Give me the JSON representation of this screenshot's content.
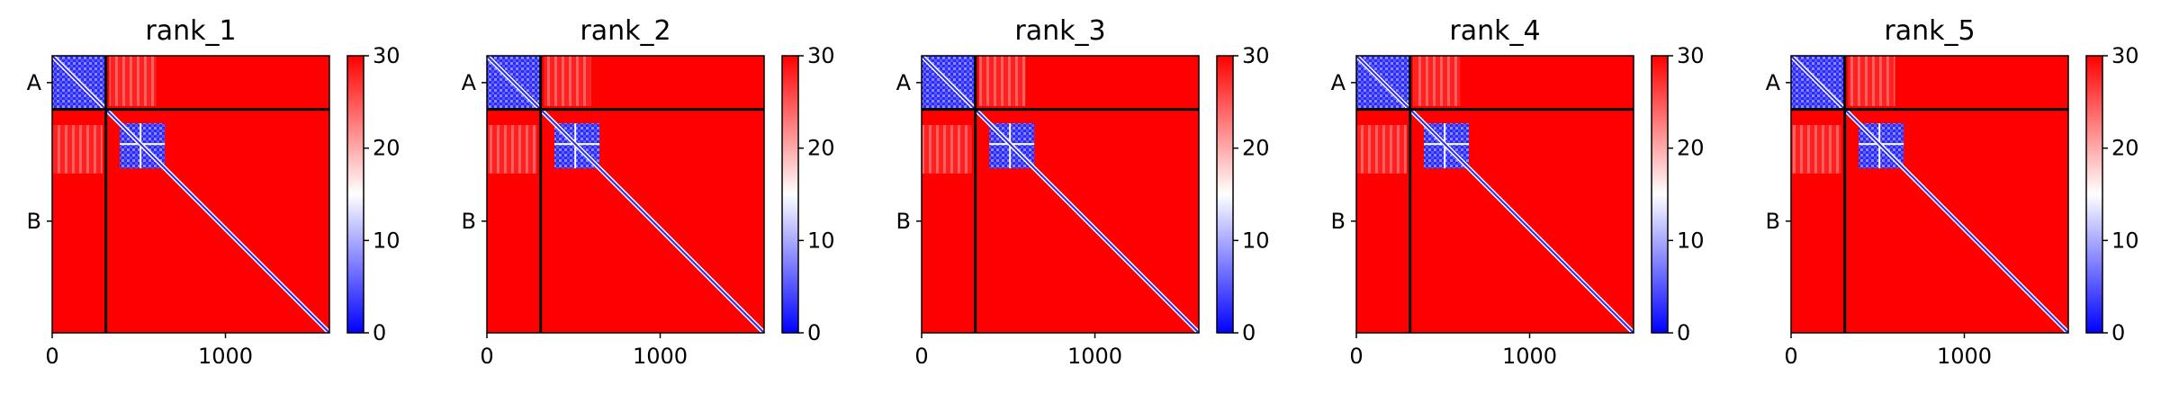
{
  "chart_data": {
    "type": "heatmap",
    "colormap": {
      "low": "#0000ff",
      "mid": "#ffffff",
      "high": "#ff0000"
    },
    "color_range": [
      0,
      30
    ],
    "colorbar_ticks": [
      "0",
      "10",
      "20",
      "30"
    ],
    "x_range": [
      0,
      1600
    ],
    "x_ticks": [
      "0",
      "1000"
    ],
    "chain_boundary": 310,
    "chain_labels": [
      "A",
      "B"
    ],
    "panels": [
      {
        "title": "rank_1"
      },
      {
        "title": "rank_2"
      },
      {
        "title": "rank_3"
      },
      {
        "title": "rank_4"
      },
      {
        "title": "rank_5"
      }
    ]
  }
}
